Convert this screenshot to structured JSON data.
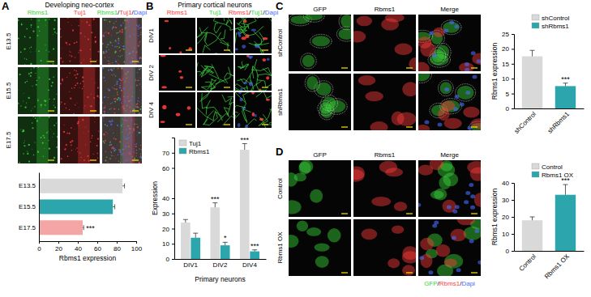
{
  "figure": {
    "panels": [
      {
        "label": "A",
        "title": "Developing neo-cortex",
        "columns": [
          "Rbms1",
          "Tuj1",
          "Rbms1/Tuj1/Dapi"
        ],
        "rows": [
          "E13.5",
          "E15.5",
          "E17.5"
        ]
      },
      {
        "label": "B",
        "title": "Primary cortical neurons",
        "columns": [
          "Rbms1",
          "Tuj1",
          "Rbms1/Tuj1/Dapi"
        ],
        "rows": [
          "DIV1",
          "DIV 2",
          "DIV 4"
        ]
      },
      {
        "label": "C",
        "columns": [
          "GFP",
          "Rbms1",
          "Merge"
        ],
        "rows": [
          "shControl",
          "shRbms1"
        ]
      },
      {
        "label": "D",
        "columns": [
          "GFP",
          "Rbms1",
          "Merge"
        ],
        "rows": [
          "Control",
          "Rbms1 OX"
        ],
        "footer": "GFP/Rbms1/Dapi"
      }
    ]
  },
  "chart_data": [
    {
      "type": "bar",
      "orientation": "horizontal",
      "categories": [
        "E13.5",
        "E15.5",
        "E17.5"
      ],
      "values": [
        86,
        76,
        45
      ],
      "errors": [
        2,
        2,
        1
      ],
      "colors": [
        "#d9d9d9",
        "#2ca5ad",
        "#f4a6a6"
      ],
      "significance": [
        null,
        null,
        "***"
      ],
      "x_label": "Rbms1 expression",
      "xlim": [
        0,
        100
      ],
      "xticks": [
        0,
        20,
        40,
        60,
        80,
        100
      ]
    },
    {
      "type": "bar",
      "categories": [
        "DIV1",
        "DIV2",
        "DIV4"
      ],
      "series": [
        {
          "name": "Tuj1",
          "color": "#d9d9d9",
          "values": [
            24,
            34,
            72
          ],
          "errors": [
            2,
            3,
            4
          ],
          "significance": [
            null,
            "***",
            "***"
          ]
        },
        {
          "name": "Rbms1",
          "color": "#2ca5ad",
          "values": [
            14,
            9,
            5
          ],
          "errors": [
            3,
            2,
            1
          ],
          "significance": [
            null,
            "*",
            "***"
          ]
        }
      ],
      "x_label": "Primary neurons",
      "y_label": "Expression",
      "ylim": [
        0,
        80
      ],
      "yticks": [
        0,
        10,
        20,
        30,
        40,
        60,
        70
      ],
      "legend": "top-left"
    },
    {
      "type": "bar",
      "categories": [
        "shControl",
        "shRbms1"
      ],
      "values": [
        17.5,
        7.5
      ],
      "errors": [
        2,
        1
      ],
      "colors": [
        "#d9d9d9",
        "#2ca5ad"
      ],
      "significance": [
        null,
        "***"
      ],
      "y_label": "Rbms1 expression",
      "ylim": [
        0,
        25
      ],
      "yticks": [
        0,
        5,
        10,
        15,
        20,
        25
      ],
      "legend": "top"
    },
    {
      "type": "bar",
      "categories": [
        "Control",
        "Rbms1 OX"
      ],
      "values": [
        18,
        33
      ],
      "errors": [
        2,
        6
      ],
      "colors": [
        "#d9d9d9",
        "#2ca5ad"
      ],
      "significance": [
        null,
        "***"
      ],
      "y_label": "Rbms1 expression",
      "ylim": [
        0,
        40
      ],
      "yticks": [
        0,
        10,
        20,
        30,
        40
      ],
      "legend": "top"
    }
  ]
}
